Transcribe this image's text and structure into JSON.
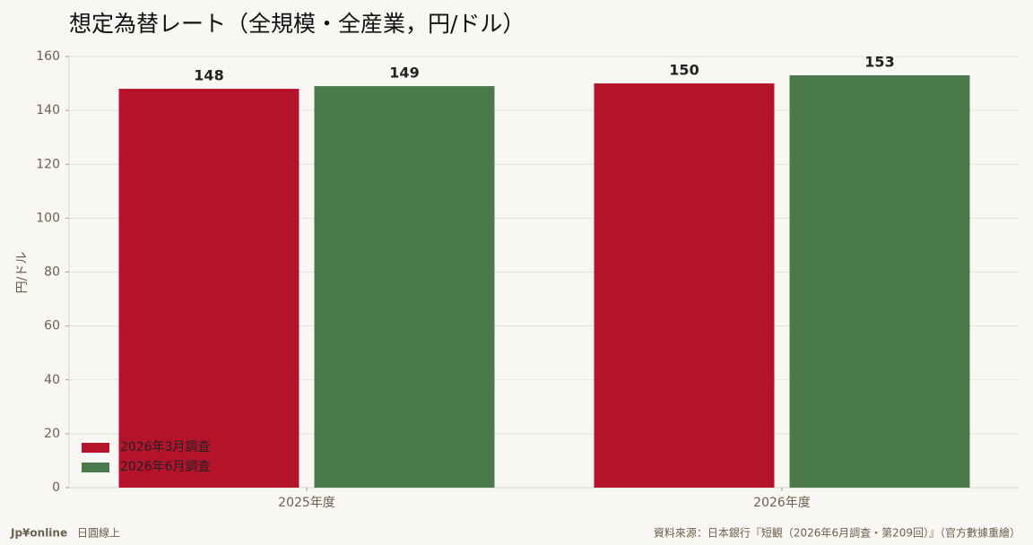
{
  "chart_data": {
    "type": "bar",
    "title": "想定為替レート（全規模・全産業，円/ドル）",
    "y_label": "円/ドル",
    "categories": [
      "2025年度",
      "2026年度"
    ],
    "series": [
      {
        "name": "2026年3月調査",
        "color": "#b5132b",
        "values": [
          148,
          150
        ]
      },
      {
        "name": "2026年6月調査",
        "color": "#4a7a4c",
        "values": [
          149,
          153
        ]
      }
    ],
    "ylim": [
      0,
      160
    ],
    "yticks": [
      0,
      20,
      40,
      60,
      80,
      100,
      120,
      140,
      160
    ],
    "grid": true,
    "legend": "lower-left"
  },
  "footer": {
    "brand": "Jp¥online",
    "brand_sub": "日圓線上",
    "source": "資料來源：日本銀行『短観（2026年6月調査・第209回）』（官方數據重繪）"
  }
}
